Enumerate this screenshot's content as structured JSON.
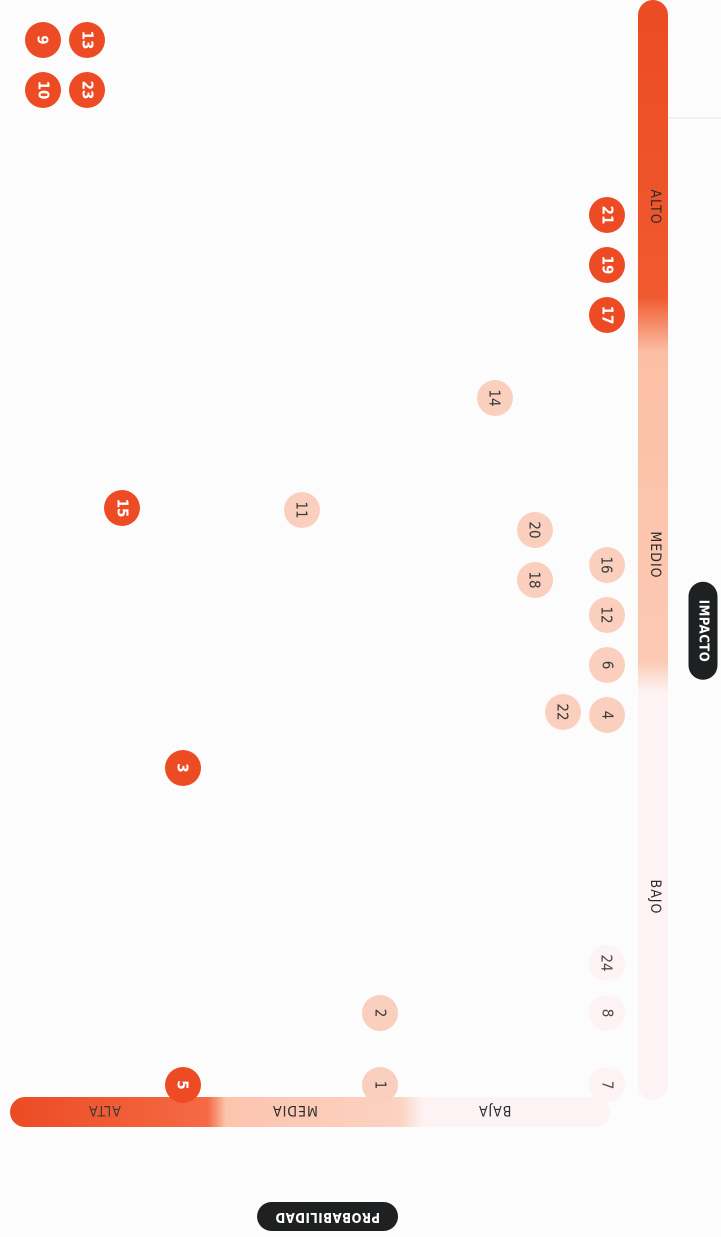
{
  "chart_data": {
    "type": "scatter",
    "title": "",
    "xlabel": "IMPACTO",
    "ylabel": "PROBABILIDAD",
    "x_levels": [
      "BAJO",
      "MEDIO",
      "ALTO"
    ],
    "y_levels": [
      "BAJA",
      "MEDIA",
      "ALTA"
    ],
    "colors": {
      "alta": "#ec4b23",
      "media": "#fbcfbd",
      "baja": "#fdf3f5"
    },
    "points": [
      {
        "label": "7",
        "impact": "BAJO",
        "probability": "BAJA",
        "severity": "baja"
      },
      {
        "label": "8",
        "impact": "BAJO",
        "probability": "BAJA",
        "severity": "baja"
      },
      {
        "label": "24",
        "impact": "BAJO",
        "probability": "BAJA",
        "severity": "baja"
      },
      {
        "label": "1",
        "impact": "BAJO",
        "probability": "MEDIA",
        "severity": "media"
      },
      {
        "label": "2",
        "impact": "BAJO",
        "probability": "MEDIA",
        "severity": "media"
      },
      {
        "label": "5",
        "impact": "BAJO",
        "probability": "ALTA",
        "severity": "alta"
      },
      {
        "label": "3",
        "impact": "MEDIO",
        "probability": "ALTA",
        "severity": "alta"
      },
      {
        "label": "4",
        "impact": "MEDIO",
        "probability": "BAJA",
        "severity": "media"
      },
      {
        "label": "6",
        "impact": "MEDIO",
        "probability": "BAJA",
        "severity": "media"
      },
      {
        "label": "12",
        "impact": "MEDIO",
        "probability": "BAJA",
        "severity": "media"
      },
      {
        "label": "16",
        "impact": "MEDIO",
        "probability": "BAJA",
        "severity": "media"
      },
      {
        "label": "22",
        "impact": "MEDIO",
        "probability": "BAJA",
        "severity": "media"
      },
      {
        "label": "18",
        "impact": "MEDIO",
        "probability": "BAJA",
        "severity": "media"
      },
      {
        "label": "20",
        "impact": "MEDIO",
        "probability": "BAJA",
        "severity": "media"
      },
      {
        "label": "11",
        "impact": "MEDIO",
        "probability": "MEDIA",
        "severity": "media"
      },
      {
        "label": "15",
        "impact": "MEDIO",
        "probability": "ALTA",
        "severity": "alta"
      },
      {
        "label": "14",
        "impact": "ALTO",
        "probability": "BAJA",
        "severity": "media"
      },
      {
        "label": "17",
        "impact": "ALTO",
        "probability": "BAJA",
        "severity": "alta"
      },
      {
        "label": "19",
        "impact": "ALTO",
        "probability": "BAJA",
        "severity": "alta"
      },
      {
        "label": "21",
        "impact": "ALTO",
        "probability": "BAJA",
        "severity": "alta"
      },
      {
        "label": "10",
        "impact": "ALTO",
        "probability": "ALTA",
        "severity": "alta"
      },
      {
        "label": "9",
        "impact": "ALTO",
        "probability": "ALTA",
        "severity": "alta"
      },
      {
        "label": "23",
        "impact": "ALTO",
        "probability": "ALTA",
        "severity": "alta"
      },
      {
        "label": "13",
        "impact": "ALTO",
        "probability": "ALTA",
        "severity": "alta"
      }
    ]
  }
}
